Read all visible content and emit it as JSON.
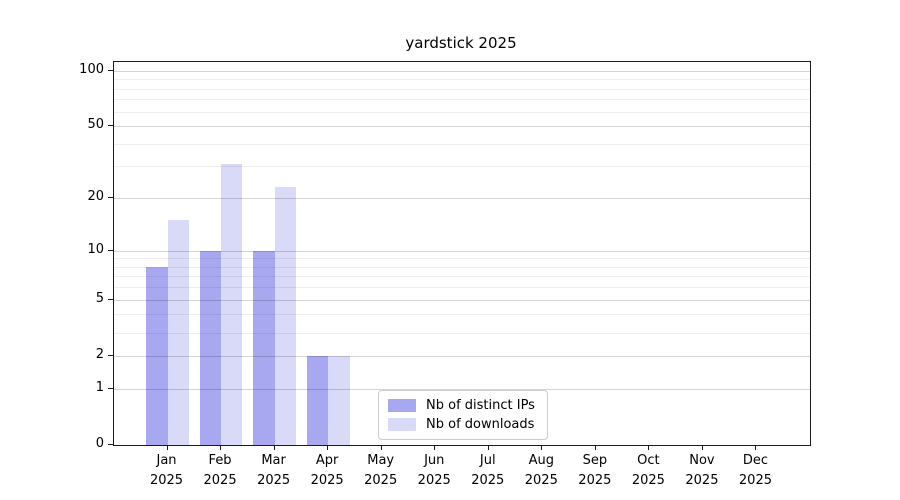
{
  "title": "yardstick 2025",
  "legend": {
    "items": [
      {
        "label": "Nb of distinct IPs",
        "color": "#a8a8f1"
      },
      {
        "label": "Nb of downloads",
        "color": "#d9d9f8"
      }
    ]
  },
  "chart_data": {
    "type": "bar",
    "title": "yardstick 2025",
    "categories": [
      "Jan",
      "Feb",
      "Mar",
      "Apr",
      "May",
      "Jun",
      "Jul",
      "Aug",
      "Sep",
      "Oct",
      "Nov",
      "Dec"
    ],
    "year_label": "2025",
    "series": [
      {
        "name": "Nb of distinct IPs",
        "color": "#a8a8f1",
        "values": [
          8,
          10,
          10,
          2,
          0,
          0,
          0,
          0,
          0,
          0,
          0,
          0
        ]
      },
      {
        "name": "Nb of downloads",
        "color": "#d9d9f8",
        "values": [
          15,
          31,
          23,
          2,
          0,
          0,
          0,
          0,
          0,
          0,
          0,
          0
        ]
      }
    ],
    "xlabel": "",
    "ylabel": "",
    "yscale": "log10(1+v)",
    "y_ticks": [
      0,
      1,
      2,
      5,
      10,
      20,
      50,
      100
    ],
    "y_minor_gridlines": [
      3,
      4,
      6,
      7,
      8,
      9,
      30,
      40,
      60,
      70,
      80,
      90
    ],
    "ylim": [
      0,
      112
    ],
    "grid": "horizontal",
    "legend_position": "inside lower center"
  }
}
